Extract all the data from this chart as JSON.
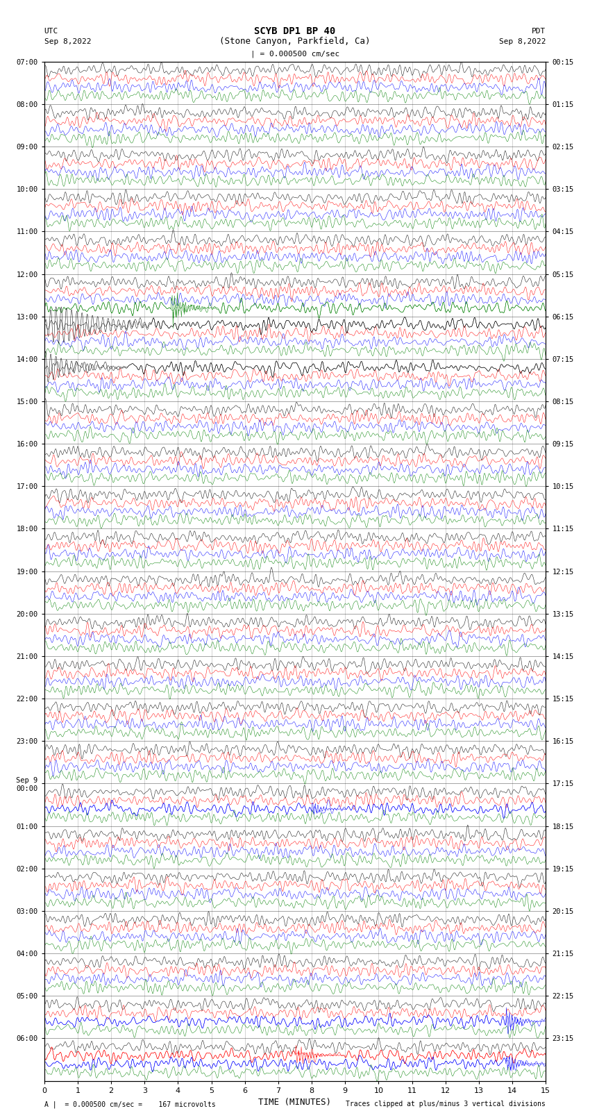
{
  "title1": "SCYB DP1 BP 40",
  "title2": "(Stone Canyon, Parkfield, Ca)",
  "scale_text": "| = 0.000500 cm/sec",
  "left_label": "UTC",
  "left_date": "Sep 8,2022",
  "right_label": "PDT",
  "right_date": "Sep 8,2022",
  "bottom_label": "TIME (MINUTES)",
  "footer_left": "A |  = 0.000500 cm/sec =    167 microvolts",
  "footer_right": "Traces clipped at plus/minus 3 vertical divisions",
  "utc_labels": [
    "07:00",
    "08:00",
    "09:00",
    "10:00",
    "11:00",
    "12:00",
    "13:00",
    "14:00",
    "15:00",
    "16:00",
    "17:00",
    "18:00",
    "19:00",
    "20:00",
    "21:00",
    "22:00",
    "23:00",
    "Sep 9\n00:00",
    "01:00",
    "02:00",
    "03:00",
    "04:00",
    "05:00",
    "06:00"
  ],
  "pdt_labels": [
    "00:15",
    "01:15",
    "02:15",
    "03:15",
    "04:15",
    "05:15",
    "06:15",
    "07:15",
    "08:15",
    "09:15",
    "10:15",
    "11:15",
    "12:15",
    "13:15",
    "14:15",
    "15:15",
    "16:15",
    "17:15",
    "18:15",
    "19:15",
    "20:15",
    "21:15",
    "22:15",
    "23:15"
  ],
  "num_hour_groups": 24,
  "colors": [
    "black",
    "red",
    "blue",
    "green"
  ],
  "fig_width": 8.5,
  "fig_height": 16.13,
  "bg_color": "white",
  "lw": 0.35
}
